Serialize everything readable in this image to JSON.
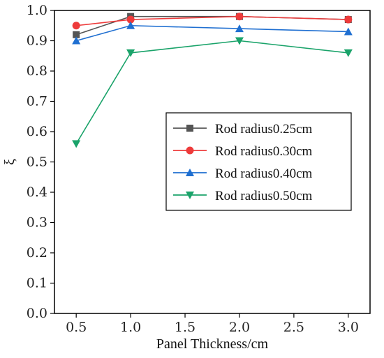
{
  "chart_data": {
    "type": "line",
    "xlabel": "Panel Thickness/cm",
    "ylabel": "ξ",
    "xlim": [
      0.3,
      3.2
    ],
    "ylim": [
      0.0,
      1.0
    ],
    "xticks": [
      "0.5",
      "1.0",
      "1.5",
      "2.0",
      "2.5",
      "3.0"
    ],
    "xtick_values": [
      0.5,
      1.0,
      1.5,
      2.0,
      2.5,
      3.0
    ],
    "yticks": [
      "0.0",
      "0.1",
      "0.2",
      "0.3",
      "0.4",
      "0.5",
      "0.6",
      "0.7",
      "0.8",
      "0.9",
      "1.0"
    ],
    "ytick_values": [
      0.0,
      0.1,
      0.2,
      0.3,
      0.4,
      0.5,
      0.6,
      0.7,
      0.8,
      0.9,
      1.0
    ],
    "legend_position": "center-right",
    "grid": false,
    "x": [
      0.5,
      1.0,
      2.0,
      3.0
    ],
    "series": [
      {
        "name": "Rod radius0.25cm",
        "color": "#555555",
        "marker": "square",
        "values": [
          0.92,
          0.98,
          0.98,
          0.97
        ]
      },
      {
        "name": "Rod radius0.30cm",
        "color": "#ee3b3b",
        "marker": "circle",
        "values": [
          0.95,
          0.97,
          0.98,
          0.97
        ]
      },
      {
        "name": "Rod radius0.40cm",
        "color": "#1f6fd1",
        "marker": "triangle-up",
        "values": [
          0.9,
          0.95,
          0.94,
          0.93
        ]
      },
      {
        "name": "Rod radius0.50cm",
        "color": "#1aa36a",
        "marker": "triangle-down",
        "values": [
          0.56,
          0.86,
          0.9,
          0.86
        ]
      }
    ]
  }
}
